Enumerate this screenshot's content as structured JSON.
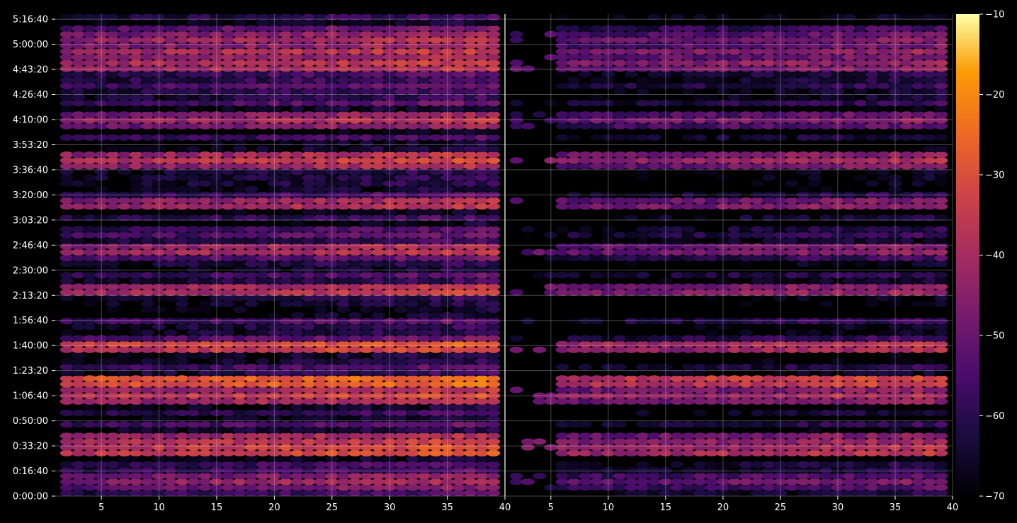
{
  "chart_data": {
    "type": "heatmap",
    "title": "",
    "xlabel": "",
    "ylabel": "",
    "background": "#000000",
    "colormap": "inferno",
    "grid": true,
    "panels": [
      {
        "name": "left",
        "xlim": [
          1,
          40
        ],
        "xticks": [
          5,
          10,
          15,
          20,
          25,
          30,
          35,
          40
        ],
        "xtick_labels": [
          "5",
          "10",
          "15",
          "20",
          "25",
          "30",
          "35",
          "40"
        ],
        "columns": [
          2,
          39
        ],
        "coverage": "full"
      },
      {
        "name": "right",
        "xlim": [
          1,
          40
        ],
        "xticks": [
          5,
          10,
          15,
          20,
          25,
          30,
          35,
          40
        ],
        "xtick_labels": [
          "5",
          "10",
          "15",
          "20",
          "25",
          "30",
          "35",
          "40"
        ],
        "columns": [
          2,
          39
        ],
        "coverage": "sparse-early-columns"
      }
    ],
    "ylim_seconds": [
      0,
      19200
    ],
    "yticks_seconds": [
      0,
      1000,
      2000,
      3000,
      4000,
      5000,
      6000,
      7000,
      8000,
      9000,
      10000,
      11000,
      12000,
      13000,
      14000,
      15000,
      16000,
      17000,
      18000,
      19000
    ],
    "ytick_labels": [
      "0:00:00",
      "0:16:40",
      "0:33:20",
      "0:50:00",
      "1:06:40",
      "1:23:20",
      "1:40:00",
      "1:56:40",
      "2:13:20",
      "2:30:00",
      "2:46:40",
      "3:03:20",
      "3:20:00",
      "3:36:40",
      "3:53:20",
      "4:10:00",
      "4:26:40",
      "4:43:20",
      "5:00:00",
      "5:16:40"
    ],
    "row_count": 84,
    "colorbar": {
      "range": [
        -70,
        -10
      ],
      "ticks": [
        -10,
        -20,
        -30,
        -40,
        -50,
        -60,
        -70
      ],
      "tick_labels": [
        "−10",
        "−20",
        "−30",
        "−40",
        "−50",
        "−60",
        "−70"
      ],
      "location": "right"
    },
    "bright_bands": [
      {
        "y_seconds": 600,
        "level": -42
      },
      {
        "y_seconds": 1800,
        "level": -30
      },
      {
        "y_seconds": 2200,
        "level": -36
      },
      {
        "y_seconds": 4000,
        "level": -34
      },
      {
        "y_seconds": 4600,
        "level": -25
      },
      {
        "y_seconds": 6000,
        "level": -30
      },
      {
        "y_seconds": 8200,
        "level": -36
      },
      {
        "y_seconds": 9800,
        "level": -38
      },
      {
        "y_seconds": 11600,
        "level": -38
      },
      {
        "y_seconds": 13400,
        "level": -35
      },
      {
        "y_seconds": 15000,
        "level": -40
      },
      {
        "y_seconds": 17200,
        "level": -36
      },
      {
        "y_seconds": 17700,
        "level": -38
      },
      {
        "y_seconds": 18200,
        "level": -40
      }
    ]
  }
}
